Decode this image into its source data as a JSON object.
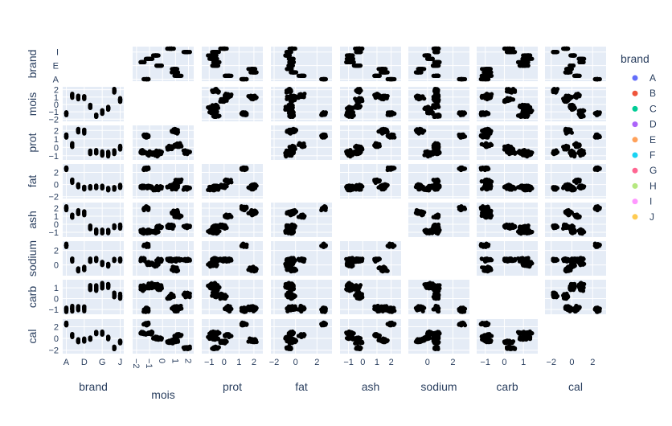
{
  "chart_data": {
    "type": "scatter",
    "kind": "scatter-matrix",
    "variables": [
      "brand",
      "mois",
      "prot",
      "fat",
      "ash",
      "sodium",
      "carb",
      "cal"
    ],
    "diagonal_visible": false,
    "grid": true,
    "legend": {
      "title": "brand",
      "placement": "right",
      "entries": [
        {
          "name": "A",
          "color": "#636efa"
        },
        {
          "name": "B",
          "color": "#EF553B"
        },
        {
          "name": "C",
          "color": "#00cc96"
        },
        {
          "name": "D",
          "color": "#ab63fa"
        },
        {
          "name": "E",
          "color": "#FFA15A"
        },
        {
          "name": "F",
          "color": "#19d3f3"
        },
        {
          "name": "G",
          "color": "#FF6692"
        },
        {
          "name": "H",
          "color": "#B6E880"
        },
        {
          "name": "I",
          "color": "#FF97FF"
        },
        {
          "name": "J",
          "color": "#FECB52"
        }
      ]
    },
    "axes": {
      "brand": {
        "ticks": [
          "A",
          "D",
          "G",
          "J"
        ],
        "yticks": [
          "A",
          "E",
          "I"
        ],
        "range": [
          -0.6,
          9.6
        ]
      },
      "mois": {
        "ticks": [
          "−2",
          "−1",
          "0",
          "1",
          "2"
        ],
        "range": [
          -2.3,
          2.4
        ]
      },
      "prot": {
        "ticks": [
          "−1",
          "0",
          "1",
          "2"
        ],
        "range": [
          -1.5,
          2.6
        ]
      },
      "fat": {
        "ticks": [
          "−2",
          "0",
          "2"
        ],
        "range": [
          -2.3,
          3.4
        ]
      },
      "ash": {
        "ticks": [
          "−1",
          "0",
          "1",
          "2"
        ],
        "range": [
          -1.6,
          2.7
        ]
      },
      "sodium": {
        "ticks": [
          "0",
          "2"
        ],
        "range": [
          -1.5,
          3.3
        ]
      },
      "carb": {
        "ticks": [
          "−1",
          "0",
          "1"
        ],
        "range": [
          -1.45,
          1.75
        ]
      },
      "cal": {
        "ticks": [
          "−2",
          "0",
          "2"
        ],
        "range": [
          -2.6,
          3.3
        ]
      }
    },
    "brand_means": {
      "A": {
        "brand": 0,
        "mois": -1.2,
        "prot": 1.3,
        "fat": 2.6,
        "ash": 2.0,
        "sodium": 2.7,
        "carb": -1.0,
        "cal": 2.4
      },
      "B": {
        "brand": 1,
        "mois": 1.2,
        "prot": 0.3,
        "fat": 0.6,
        "ash": 1.0,
        "sodium": 0.7,
        "carb": -0.9,
        "cal": 0.5
      },
      "C": {
        "brand": 2,
        "mois": 1.0,
        "prot": 2.0,
        "fat": -0.2,
        "ash": 1.5,
        "sodium": -0.7,
        "carb": -0.9,
        "cal": -0.4
      },
      "D": {
        "brand": 3,
        "mois": 0.9,
        "prot": 1.9,
        "fat": -0.6,
        "ash": 1.4,
        "sodium": -0.5,
        "carb": -0.9,
        "cal": -0.3
      },
      "E": {
        "brand": 4,
        "mois": -0.3,
        "prot": -0.6,
        "fat": -0.5,
        "ash": -0.4,
        "sodium": 0.6,
        "carb": 1.0,
        "cal": 0.0
      },
      "F": {
        "brand": 5,
        "mois": -1.5,
        "prot": -0.6,
        "fat": -0.4,
        "ash": -0.9,
        "sodium": 0.8,
        "carb": 1.0,
        "cal": 0.9
      },
      "G": {
        "brand": 6,
        "mois": -1.0,
        "prot": -0.7,
        "fat": -0.4,
        "ash": -0.9,
        "sodium": 0.2,
        "carb": 1.2,
        "cal": 0.9
      },
      "H": {
        "brand": 7,
        "mois": -0.5,
        "prot": -0.8,
        "fat": -0.8,
        "ash": -0.9,
        "sodium": 0.0,
        "carb": 1.2,
        "cal": 0.1
      },
      "I": {
        "brand": 8,
        "mois": 1.9,
        "prot": -0.6,
        "fat": -0.6,
        "ash": -0.3,
        "sodium": 0.7,
        "carb": 0.3,
        "cal": -1.6
      },
      "J": {
        "brand": 9,
        "mois": 0.6,
        "prot": 0.0,
        "fat": -0.3,
        "ash": -0.3,
        "sodium": 0.7,
        "carb": 0.2,
        "cal": -0.6
      }
    },
    "spread_per_point": 0.25,
    "points_per_brand": 30
  }
}
